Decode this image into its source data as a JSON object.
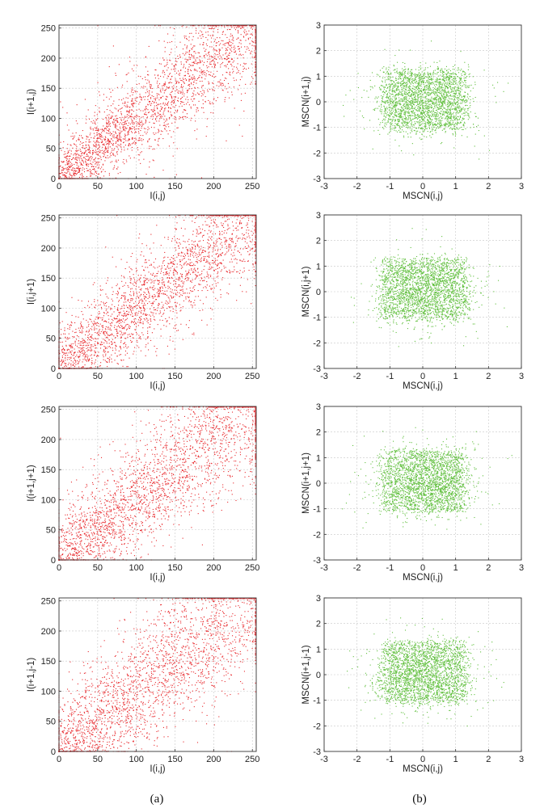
{
  "captions": [
    "(a)",
    "(b)"
  ],
  "chart_data": [
    {
      "type": "scatter",
      "panel": "a",
      "row": 1,
      "color": "#e8262a",
      "xlabel": "I(i,j)",
      "ylabel": "I(i+1,j)",
      "xlim": [
        0,
        255
      ],
      "ylim": [
        0,
        255
      ],
      "xticks": [
        0,
        50,
        100,
        150,
        200,
        250
      ],
      "yticks": [
        0,
        50,
        100,
        150,
        200,
        250
      ],
      "grid": true,
      "series": [
        {
          "distribution": "positively correlated cloud along the diagonal y = x, dense in the 0-255 range with wide spread",
          "points": [
            [
              0,
              0
            ],
            [
              50,
              50
            ],
            [
              100,
              100
            ],
            [
              150,
              150
            ],
            [
              200,
              200
            ],
            [
              250,
              250
            ]
          ]
        }
      ]
    },
    {
      "type": "scatter",
      "panel": "b",
      "row": 1,
      "color": "#5fbf3c",
      "xlabel": "MSCN(i,j)",
      "ylabel": "MSCN(i+1,j)",
      "xlim": [
        -3,
        3
      ],
      "ylim": [
        -3,
        3
      ],
      "xticks": [
        -3,
        -2,
        -1,
        0,
        1,
        2,
        3
      ],
      "yticks": [
        -3,
        -2,
        -1,
        0,
        1,
        2,
        3
      ],
      "grid": true,
      "series": [
        {
          "distribution": "dense uncorrelated blob centered at (0,0), roughly -1.6 to 2 in x and -1.5 to 1.5 in y",
          "points": [
            [
              0,
              0
            ]
          ]
        }
      ]
    },
    {
      "type": "scatter",
      "panel": "a",
      "row": 2,
      "color": "#e8262a",
      "xlabel": "I(i,j)",
      "ylabel": "I(i,j+1)",
      "xlim": [
        0,
        255
      ],
      "ylim": [
        0,
        255
      ],
      "xticks": [
        0,
        50,
        100,
        150,
        200,
        250
      ],
      "yticks": [
        0,
        50,
        100,
        150,
        200,
        250
      ],
      "grid": true,
      "series": [
        {
          "distribution": "positively correlated cloud along the diagonal y = x",
          "points": [
            [
              0,
              0
            ],
            [
              50,
              50
            ],
            [
              100,
              100
            ],
            [
              150,
              150
            ],
            [
              200,
              200
            ],
            [
              250,
              250
            ]
          ]
        }
      ]
    },
    {
      "type": "scatter",
      "panel": "b",
      "row": 2,
      "color": "#5fbf3c",
      "xlabel": "MSCN(i,j)",
      "ylabel": "MSCN(i,j+1)",
      "xlim": [
        -3,
        3
      ],
      "ylim": [
        -3,
        3
      ],
      "xticks": [
        -3,
        -2,
        -1,
        0,
        1,
        2,
        3
      ],
      "yticks": [
        -3,
        -2,
        -1,
        0,
        1,
        2,
        3
      ],
      "grid": true,
      "series": [
        {
          "distribution": "dense uncorrelated blob centered at (0,0)",
          "points": [
            [
              0,
              0
            ]
          ]
        }
      ]
    },
    {
      "type": "scatter",
      "panel": "a",
      "row": 3,
      "color": "#e8262a",
      "xlabel": "I(i,j)",
      "ylabel": "I(i+1,j+1)",
      "xlim": [
        0,
        255
      ],
      "ylim": [
        0,
        255
      ],
      "xticks": [
        0,
        50,
        100,
        150,
        200,
        250
      ],
      "yticks": [
        0,
        50,
        100,
        150,
        200,
        250
      ],
      "grid": true,
      "series": [
        {
          "distribution": "positively correlated cloud along the diagonal y = x, wider spread",
          "points": [
            [
              0,
              0
            ],
            [
              50,
              50
            ],
            [
              100,
              100
            ],
            [
              150,
              150
            ],
            [
              200,
              200
            ],
            [
              250,
              250
            ]
          ]
        }
      ]
    },
    {
      "type": "scatter",
      "panel": "b",
      "row": 3,
      "color": "#5fbf3c",
      "xlabel": "MSCN(i,j)",
      "ylabel": "MSCN(i+1,j+1)",
      "xlim": [
        -3,
        3
      ],
      "ylim": [
        -3,
        3
      ],
      "xticks": [
        -3,
        -2,
        -1,
        0,
        1,
        2,
        3
      ],
      "yticks": [
        -3,
        -2,
        -1,
        0,
        1,
        2,
        3
      ],
      "grid": true,
      "series": [
        {
          "distribution": "dense uncorrelated blob centered at (0,0)",
          "points": [
            [
              0,
              0
            ]
          ]
        }
      ]
    },
    {
      "type": "scatter",
      "panel": "a",
      "row": 4,
      "color": "#e8262a",
      "xlabel": "I(i,j)",
      "ylabel": "I(i+1,j-1)",
      "xlim": [
        0,
        255
      ],
      "ylim": [
        0,
        255
      ],
      "xticks": [
        0,
        50,
        100,
        150,
        200,
        250
      ],
      "yticks": [
        0,
        50,
        100,
        150,
        200,
        250
      ],
      "grid": true,
      "series": [
        {
          "distribution": "positively correlated cloud along the diagonal y = x, widest spread",
          "points": [
            [
              0,
              0
            ],
            [
              50,
              50
            ],
            [
              100,
              100
            ],
            [
              150,
              150
            ],
            [
              200,
              200
            ],
            [
              250,
              250
            ]
          ]
        }
      ]
    },
    {
      "type": "scatter",
      "panel": "b",
      "row": 4,
      "color": "#5fbf3c",
      "xlabel": "MSCN(i,j)",
      "ylabel": "MSCN(i+1,j-1)",
      "xlim": [
        -3,
        3
      ],
      "ylim": [
        -3,
        3
      ],
      "xticks": [
        -3,
        -2,
        -1,
        0,
        1,
        2,
        3
      ],
      "yticks": [
        -3,
        -2,
        -1,
        0,
        1,
        2,
        3
      ],
      "grid": true,
      "series": [
        {
          "distribution": "dense uncorrelated blob centered at (0,0)",
          "points": [
            [
              0,
              0
            ]
          ]
        }
      ]
    }
  ]
}
